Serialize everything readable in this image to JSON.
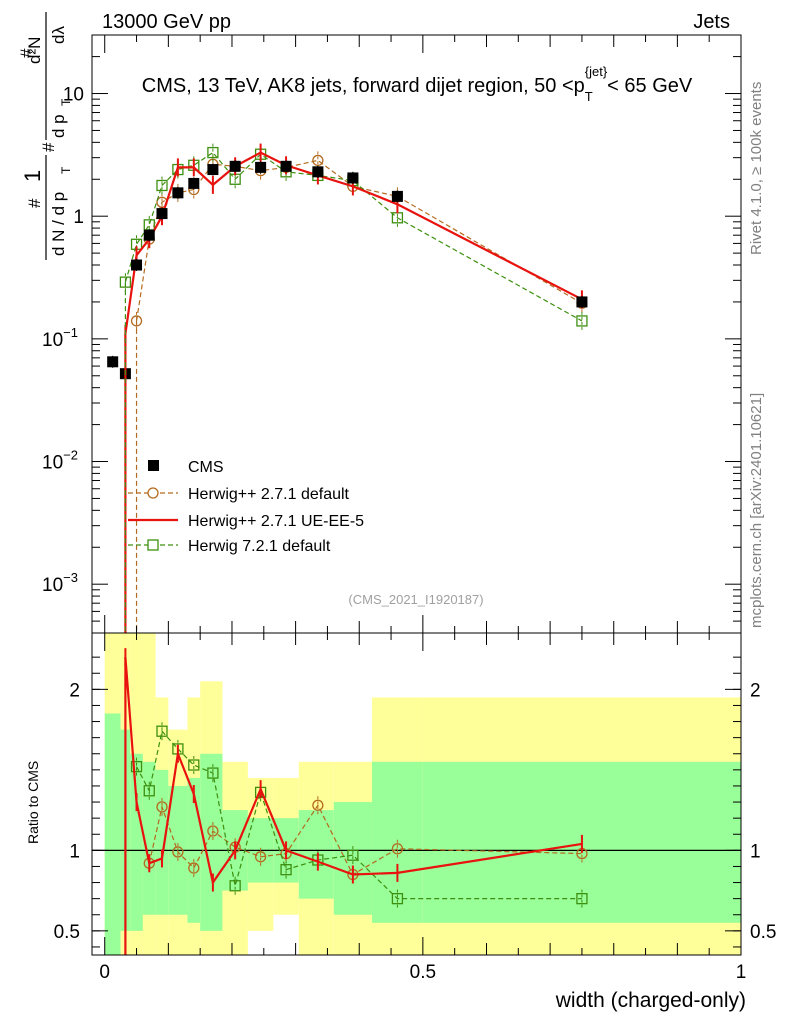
{
  "header": {
    "energy_label": "13000 GeV pp",
    "category_label": "Jets",
    "rivet_label": "Rivet 4.1.0, ≥ 100k events",
    "mcplots_label": "mcplots.cern.ch [arXiv:2401.10621]",
    "analysis_id": "(CMS_2021_I1920187)"
  },
  "chart_data": [
    {
      "type": "scatter",
      "title": "CMS, 13 TeV, AK8 jets, forward dijet region, 50 < p_T^{jet} < 65 GeV",
      "title_parts": {
        "main": "CMS, 13 TeV, AK8 jets, forward dijet region, 50 <p",
        "sub": "T",
        "sup": "{jet}",
        "tail": "< 65 GeV"
      },
      "ylabel": "1/dN/dp_T  d²N/dp_T dλ",
      "ylabel_parts": {
        "one": "1",
        "hash": "#",
        "dN": "d N / d p",
        "T": "T",
        "hash2": "#",
        "d2N": "d²N",
        "dpdl": "d p",
        "T2": "T",
        "dl": "dλ"
      },
      "yscale": "log",
      "ylim": [
        0.0004,
        30
      ],
      "xlim": [
        -0.02,
        1.0
      ],
      "yticks": [
        {
          "value": 0.001,
          "base": "10",
          "exp": "−3"
        },
        {
          "value": 0.01,
          "base": "10",
          "exp": "−2"
        },
        {
          "value": 0.1,
          "base": "10",
          "exp": "−1"
        },
        {
          "value": 1,
          "base": "1",
          "exp": ""
        },
        {
          "value": 10,
          "base": "10",
          "exp": ""
        }
      ],
      "legend_position": "center-left",
      "series": [
        {
          "name": "CMS",
          "color": "#000000",
          "style": "points",
          "marker": "filled-square",
          "x": [
            0.0125,
            0.0325,
            0.05,
            0.07,
            0.09,
            0.115,
            0.14,
            0.17,
            0.205,
            0.245,
            0.285,
            0.335,
            0.39,
            0.46,
            0.75
          ],
          "y": [
            0.065,
            0.052,
            0.4,
            0.7,
            1.05,
            1.55,
            1.85,
            2.4,
            2.55,
            2.5,
            2.55,
            2.3,
            2.05,
            1.45,
            0.2
          ]
        },
        {
          "name": "Herwig++ 2.7.1 default",
          "color": "#b36b1f",
          "style": "dashed",
          "marker": "open-circle",
          "x": [
            0.05,
            0.07,
            0.09,
            0.115,
            0.14,
            0.17,
            0.205,
            0.245,
            0.285,
            0.335,
            0.39,
            0.46,
            0.75
          ],
          "y": [
            0.14,
            0.65,
            1.3,
            1.55,
            1.65,
            2.65,
            2.55,
            2.35,
            2.5,
            2.85,
            1.75,
            1.45,
            0.195
          ]
        },
        {
          "name": "Herwig++ 2.7.1 UE-EE-5",
          "color": "#e8120e",
          "style": "solid",
          "marker": "none",
          "x": [
            0.0325,
            0.05,
            0.07,
            0.09,
            0.115,
            0.14,
            0.17,
            0.205,
            0.245,
            0.285,
            0.335,
            0.39,
            0.46,
            0.75
          ],
          "y": [
            0.11,
            0.48,
            0.65,
            1.0,
            2.5,
            2.5,
            1.8,
            2.55,
            3.3,
            2.6,
            2.15,
            1.75,
            1.25,
            0.21
          ]
        },
        {
          "name": "Herwig 7.2.1 default",
          "color": "#3d8f0f",
          "style": "dashed",
          "marker": "open-square",
          "x": [
            0.0325,
            0.05,
            0.07,
            0.09,
            0.115,
            0.14,
            0.17,
            0.205,
            0.245,
            0.285,
            0.335,
            0.39,
            0.46,
            0.75
          ],
          "y": [
            0.29,
            0.59,
            0.85,
            1.78,
            2.4,
            2.6,
            3.3,
            2.0,
            3.2,
            2.3,
            2.15,
            1.95,
            0.97,
            0.14
          ]
        }
      ]
    },
    {
      "type": "scatter",
      "ylabel": "Ratio to CMS",
      "xlabel": "width (charged-only)",
      "ylim": [
        0.35,
        2.35
      ],
      "xlim": [
        -0.02,
        1.0
      ],
      "xticks": [
        {
          "value": 0,
          "label": "0"
        },
        {
          "value": 0.5,
          "label": "0.5"
        },
        {
          "value": 1,
          "label": "1"
        }
      ],
      "yticks": [
        {
          "value": 0.5,
          "label": "0.5"
        },
        {
          "value": 1,
          "label": "1"
        },
        {
          "value": 2,
          "label": "2"
        }
      ],
      "reference_line": 1,
      "uncertainty_bands": {
        "bin_edges": [
          0,
          0.025,
          0.04,
          0.06,
          0.08,
          0.1,
          0.13,
          0.15,
          0.185,
          0.225,
          0.265,
          0.305,
          0.36,
          0.42,
          0.5,
          1.0
        ],
        "yellow_lo": [
          0.35,
          0.35,
          0.35,
          0.35,
          0.35,
          0.35,
          0.35,
          0.35,
          0.35,
          0.5,
          0.6,
          0.35,
          0.35,
          0.35,
          0.35
        ],
        "yellow_hi": [
          2.35,
          2.35,
          2.35,
          2.35,
          1.95,
          1.75,
          1.95,
          2.05,
          1.55,
          1.45,
          1.45,
          1.55,
          1.55,
          1.95,
          1.95
        ],
        "green_lo": [
          0.35,
          0.5,
          0.5,
          0.6,
          0.6,
          0.6,
          0.55,
          0.5,
          0.75,
          0.8,
          0.8,
          0.7,
          0.6,
          0.55,
          0.55
        ],
        "green_hi": [
          1.85,
          1.75,
          1.6,
          1.55,
          1.5,
          1.4,
          1.45,
          1.6,
          1.25,
          1.2,
          1.2,
          1.25,
          1.3,
          1.55,
          1.55
        ]
      },
      "series": [
        {
          "name": "Herwig++ 2.7.1 default",
          "color": "#b36b1f",
          "style": "dashed",
          "marker": "open-circle",
          "x": [
            0.07,
            0.09,
            0.115,
            0.14,
            0.17,
            0.205,
            0.245,
            0.285,
            0.335,
            0.39,
            0.46,
            0.75
          ],
          "y": [
            0.92,
            1.27,
            0.99,
            0.89,
            1.12,
            1.02,
            0.96,
            0.98,
            1.28,
            0.85,
            1.01,
            0.98
          ]
        },
        {
          "name": "Herwig++ 2.7.1 UE-EE-5",
          "color": "#e8120e",
          "style": "solid",
          "marker": "none",
          "x": [
            0.0325,
            0.05,
            0.07,
            0.09,
            0.115,
            0.14,
            0.17,
            0.205,
            0.245,
            0.285,
            0.335,
            0.39,
            0.46,
            0.75
          ],
          "y": [
            2.2,
            1.3,
            0.92,
            0.95,
            1.6,
            1.35,
            0.8,
            1.0,
            1.38,
            1.0,
            0.93,
            0.85,
            0.86,
            1.04
          ]
        },
        {
          "name": "Herwig 7.2.1 default",
          "color": "#3d8f0f",
          "style": "dashed",
          "marker": "open-square",
          "x": [
            0.05,
            0.07,
            0.09,
            0.115,
            0.14,
            0.17,
            0.205,
            0.245,
            0.285,
            0.335,
            0.39,
            0.46,
            0.75
          ],
          "y": [
            1.52,
            1.37,
            1.74,
            1.63,
            1.53,
            1.48,
            0.78,
            1.36,
            0.88,
            0.94,
            0.97,
            0.7,
            0.7
          ]
        }
      ]
    }
  ]
}
